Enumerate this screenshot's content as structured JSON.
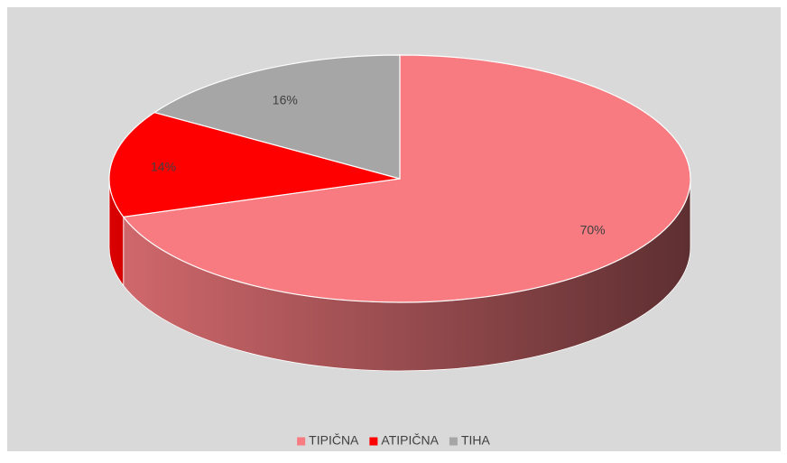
{
  "chart_data": {
    "type": "pie3d",
    "categories": [
      "TIPIČNA",
      "ATIPIČNA",
      "TIHA"
    ],
    "values": [
      70,
      14,
      16
    ],
    "value_labels": [
      "70%",
      "14%",
      "16%"
    ],
    "colors": [
      "#f77b80",
      "#ff0000",
      "#a6a6a6"
    ],
    "legend": "bottom"
  }
}
